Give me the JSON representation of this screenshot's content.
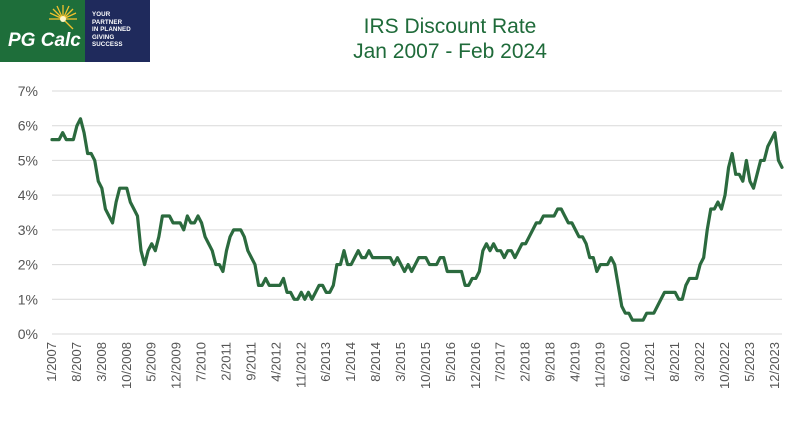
{
  "logo": {
    "name": "PG Calc",
    "tagline": [
      "YOUR",
      "PARTNER",
      "IN PLANNED",
      "GIVING",
      "SUCCESS"
    ]
  },
  "colors": {
    "line": "#2b6a3e",
    "title": "#1f6b3a",
    "grid": "#d9d9d9",
    "logo_green": "#1e6e3a",
    "logo_navy": "#1f2a5c",
    "logo_star": "#f2c12e"
  },
  "chart_data": {
    "type": "line",
    "title": "IRS Discount Rate",
    "subtitle": "Jan 2007 - Feb 2024",
    "xlabel": "",
    "ylabel": "",
    "ylim": [
      0,
      7
    ],
    "grid": true,
    "legend": "none",
    "y_ticks": [
      "0%",
      "1%",
      "2%",
      "3%",
      "4%",
      "5%",
      "6%",
      "7%"
    ],
    "x_ticks": [
      "1/2007",
      "8/2007",
      "3/2008",
      "10/2008",
      "5/2009",
      "12/2009",
      "7/2010",
      "2/2011",
      "9/2011",
      "4/2012",
      "11/2012",
      "6/2013",
      "1/2014",
      "8/2014",
      "3/2015",
      "10/2015",
      "5/2016",
      "12/2016",
      "7/2017",
      "2/2018",
      "9/2018",
      "4/2019",
      "11/2019",
      "6/2020",
      "1/2021",
      "8/2021",
      "3/2022",
      "10/2022",
      "5/2023",
      "12/2023"
    ],
    "x_start": "1/2007",
    "x_end": "2/2024",
    "series": [
      {
        "points": [
          [
            "1/2007",
            5.6
          ],
          [
            "3/2007",
            5.6
          ],
          [
            "4/2007",
            5.8
          ],
          [
            "5/2007",
            5.6
          ],
          [
            "7/2007",
            5.6
          ],
          [
            "8/2007",
            6.0
          ],
          [
            "9/2007",
            6.2
          ],
          [
            "10/2007",
            5.8
          ],
          [
            "11/2007",
            5.2
          ],
          [
            "12/2007",
            5.2
          ],
          [
            "1/2008",
            5.0
          ],
          [
            "2/2008",
            4.4
          ],
          [
            "3/2008",
            4.2
          ],
          [
            "4/2008",
            3.6
          ],
          [
            "5/2008",
            3.4
          ],
          [
            "6/2008",
            3.2
          ],
          [
            "7/2008",
            3.8
          ],
          [
            "8/2008",
            4.2
          ],
          [
            "10/2008",
            4.2
          ],
          [
            "11/2008",
            3.8
          ],
          [
            "12/2008",
            3.6
          ],
          [
            "1/2009",
            3.4
          ],
          [
            "2/2009",
            2.4
          ],
          [
            "3/2009",
            2.0
          ],
          [
            "4/2009",
            2.4
          ],
          [
            "5/2009",
            2.6
          ],
          [
            "6/2009",
            2.4
          ],
          [
            "7/2009",
            2.8
          ],
          [
            "8/2009",
            3.4
          ],
          [
            "10/2009",
            3.4
          ],
          [
            "11/2009",
            3.2
          ],
          [
            "12/2009",
            3.2
          ],
          [
            "1/2010",
            3.2
          ],
          [
            "2/2010",
            3.0
          ],
          [
            "3/2010",
            3.4
          ],
          [
            "4/2010",
            3.2
          ],
          [
            "5/2010",
            3.2
          ],
          [
            "6/2010",
            3.4
          ],
          [
            "7/2010",
            3.2
          ],
          [
            "8/2010",
            2.8
          ],
          [
            "9/2010",
            2.6
          ],
          [
            "10/2010",
            2.4
          ],
          [
            "11/2010",
            2.0
          ],
          [
            "12/2010",
            2.0
          ],
          [
            "1/2011",
            1.8
          ],
          [
            "2/2011",
            2.4
          ],
          [
            "3/2011",
            2.8
          ],
          [
            "4/2011",
            3.0
          ],
          [
            "6/2011",
            3.0
          ],
          [
            "7/2011",
            2.8
          ],
          [
            "8/2011",
            2.4
          ],
          [
            "9/2011",
            2.2
          ],
          [
            "10/2011",
            2.0
          ],
          [
            "11/2011",
            1.4
          ],
          [
            "12/2011",
            1.4
          ],
          [
            "1/2012",
            1.6
          ],
          [
            "2/2012",
            1.4
          ],
          [
            "5/2012",
            1.4
          ],
          [
            "6/2012",
            1.6
          ],
          [
            "7/2012",
            1.2
          ],
          [
            "8/2012",
            1.2
          ],
          [
            "9/2012",
            1.0
          ],
          [
            "10/2012",
            1.0
          ],
          [
            "11/2012",
            1.2
          ],
          [
            "12/2012",
            1.0
          ],
          [
            "1/2013",
            1.2
          ],
          [
            "2/2013",
            1.0
          ],
          [
            "3/2013",
            1.2
          ],
          [
            "4/2013",
            1.4
          ],
          [
            "5/2013",
            1.4
          ],
          [
            "6/2013",
            1.2
          ],
          [
            "7/2013",
            1.2
          ],
          [
            "8/2013",
            1.4
          ],
          [
            "9/2013",
            2.0
          ],
          [
            "10/2013",
            2.0
          ],
          [
            "11/2013",
            2.4
          ],
          [
            "12/2013",
            2.0
          ],
          [
            "1/2014",
            2.0
          ],
          [
            "2/2014",
            2.2
          ],
          [
            "3/2014",
            2.4
          ],
          [
            "4/2014",
            2.2
          ],
          [
            "5/2014",
            2.2
          ],
          [
            "6/2014",
            2.4
          ],
          [
            "7/2014",
            2.2
          ],
          [
            "12/2014",
            2.2
          ],
          [
            "1/2015",
            2.0
          ],
          [
            "2/2015",
            2.2
          ],
          [
            "3/2015",
            2.0
          ],
          [
            "4/2015",
            1.8
          ],
          [
            "5/2015",
            2.0
          ],
          [
            "6/2015",
            1.8
          ],
          [
            "7/2015",
            2.0
          ],
          [
            "8/2015",
            2.2
          ],
          [
            "10/2015",
            2.2
          ],
          [
            "11/2015",
            2.0
          ],
          [
            "1/2016",
            2.0
          ],
          [
            "2/2016",
            2.2
          ],
          [
            "3/2016",
            2.2
          ],
          [
            "4/2016",
            1.8
          ],
          [
            "8/2016",
            1.8
          ],
          [
            "9/2016",
            1.4
          ],
          [
            "10/2016",
            1.4
          ],
          [
            "11/2016",
            1.6
          ],
          [
            "12/2016",
            1.6
          ],
          [
            "1/2017",
            1.8
          ],
          [
            "2/2017",
            2.4
          ],
          [
            "3/2017",
            2.6
          ],
          [
            "4/2017",
            2.4
          ],
          [
            "5/2017",
            2.6
          ],
          [
            "6/2017",
            2.4
          ],
          [
            "7/2017",
            2.4
          ],
          [
            "8/2017",
            2.2
          ],
          [
            "9/2017",
            2.4
          ],
          [
            "10/2017",
            2.4
          ],
          [
            "11/2017",
            2.2
          ],
          [
            "12/2017",
            2.4
          ],
          [
            "1/2018",
            2.6
          ],
          [
            "2/2018",
            2.6
          ],
          [
            "3/2018",
            2.8
          ],
          [
            "4/2018",
            3.0
          ],
          [
            "5/2018",
            3.2
          ],
          [
            "6/2018",
            3.2
          ],
          [
            "7/2018",
            3.4
          ],
          [
            "10/2018",
            3.4
          ],
          [
            "11/2018",
            3.6
          ],
          [
            "12/2018",
            3.6
          ],
          [
            "1/2019",
            3.4
          ],
          [
            "2/2019",
            3.2
          ],
          [
            "3/2019",
            3.2
          ],
          [
            "4/2019",
            3.0
          ],
          [
            "5/2019",
            2.8
          ],
          [
            "6/2019",
            2.8
          ],
          [
            "7/2019",
            2.6
          ],
          [
            "8/2019",
            2.2
          ],
          [
            "9/2019",
            2.2
          ],
          [
            "10/2019",
            1.8
          ],
          [
            "11/2019",
            2.0
          ],
          [
            "1/2020",
            2.0
          ],
          [
            "2/2020",
            2.2
          ],
          [
            "3/2020",
            2.0
          ],
          [
            "4/2020",
            1.4
          ],
          [
            "5/2020",
            0.8
          ],
          [
            "6/2020",
            0.6
          ],
          [
            "7/2020",
            0.6
          ],
          [
            "8/2020",
            0.4
          ],
          [
            "11/2020",
            0.4
          ],
          [
            "12/2020",
            0.6
          ],
          [
            "2/2021",
            0.6
          ],
          [
            "3/2021",
            0.8
          ],
          [
            "4/2021",
            1.0
          ],
          [
            "5/2021",
            1.2
          ],
          [
            "8/2021",
            1.2
          ],
          [
            "9/2021",
            1.0
          ],
          [
            "10/2021",
            1.0
          ],
          [
            "11/2021",
            1.4
          ],
          [
            "12/2021",
            1.6
          ],
          [
            "2/2022",
            1.6
          ],
          [
            "3/2022",
            2.0
          ],
          [
            "4/2022",
            2.2
          ],
          [
            "5/2022",
            3.0
          ],
          [
            "6/2022",
            3.6
          ],
          [
            "7/2022",
            3.6
          ],
          [
            "8/2022",
            3.8
          ],
          [
            "9/2022",
            3.6
          ],
          [
            "10/2022",
            4.0
          ],
          [
            "11/2022",
            4.8
          ],
          [
            "12/2022",
            5.2
          ],
          [
            "1/2023",
            4.6
          ],
          [
            "2/2023",
            4.6
          ],
          [
            "3/2023",
            4.4
          ],
          [
            "4/2023",
            5.0
          ],
          [
            "5/2023",
            4.4
          ],
          [
            "6/2023",
            4.2
          ],
          [
            "7/2023",
            4.6
          ],
          [
            "8/2023",
            5.0
          ],
          [
            "9/2023",
            5.0
          ],
          [
            "10/2023",
            5.4
          ],
          [
            "11/2023",
            5.6
          ],
          [
            "12/2023",
            5.8
          ],
          [
            "1/2024",
            5.0
          ],
          [
            "2/2024",
            4.8
          ]
        ]
      }
    ]
  }
}
